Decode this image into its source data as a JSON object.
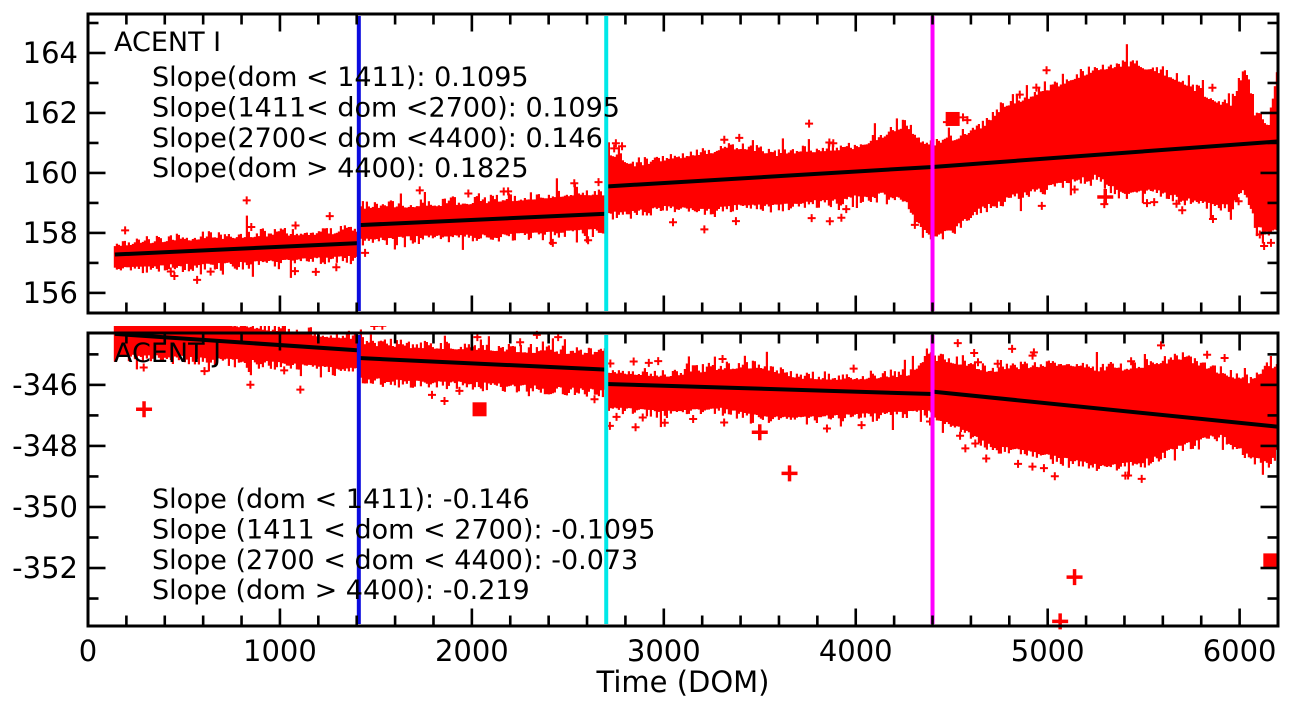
{
  "figure": {
    "background": "#ffffff"
  },
  "chart_data": {
    "type": "scatter",
    "title": "",
    "xlabel": "Time (DOM)",
    "ylabel": "",
    "x_range": [
      0,
      6200
    ],
    "x_major_ticks": [
      0,
      1000,
      2000,
      3000,
      4000,
      5000,
      6000
    ],
    "x_tick_labels": [
      "0",
      "1000",
      "2000",
      "3000",
      "4000",
      "5000",
      "6000"
    ],
    "x_minor_step": 200,
    "grid": false,
    "colors": {
      "marker": "#ff0000",
      "fit": "#000000",
      "axis": "#000000",
      "blue": "#0b0bdf",
      "cyan": "#00e8e8",
      "magenta": "#ff00ff"
    },
    "vlines": [
      {
        "x": 1411,
        "color": "blue"
      },
      {
        "x": 2700,
        "color": "cyan"
      },
      {
        "x": 4400,
        "color": "magenta"
      }
    ],
    "panels": [
      {
        "id": "acent-i",
        "label": "ACENT I",
        "y_range": [
          155.33,
          165.3
        ],
        "y_major_ticks": [
          164,
          162,
          160,
          158,
          156
        ],
        "y_minor_step": 1,
        "annotations": [
          "Slope(dom < 1411): 0.1095",
          "Slope(1411< dom <2700): 0.1095",
          "Slope(2700< dom <4400): 0.146",
          "Slope(dom > 4400): 0.1825"
        ],
        "fits": [
          [
            140,
            157.28,
            1411,
            157.66
          ],
          [
            1411,
            158.26,
            2700,
            158.64
          ],
          [
            2700,
            159.55,
            4400,
            160.2
          ],
          [
            4400,
            160.2,
            6200,
            161.05
          ]
        ],
        "band": [
          [
            140,
            156.85,
            157.55
          ],
          [
            400,
            156.95,
            157.7
          ],
          [
            700,
            157.0,
            157.8
          ],
          [
            1000,
            157.1,
            157.9
          ],
          [
            1250,
            157.2,
            157.95
          ],
          [
            1405,
            157.25,
            158.0
          ],
          [
            1412,
            157.8,
            158.8
          ],
          [
            1700,
            157.9,
            158.85
          ],
          [
            2000,
            157.95,
            158.95
          ],
          [
            2300,
            158.0,
            159.1
          ],
          [
            2550,
            158.1,
            159.25
          ],
          [
            2696,
            158.15,
            159.25
          ],
          [
            2701,
            158.7,
            160.65
          ],
          [
            2850,
            158.75,
            160.2
          ],
          [
            3000,
            158.9,
            160.4
          ],
          [
            3200,
            158.8,
            160.6
          ],
          [
            3400,
            158.95,
            160.8
          ],
          [
            3600,
            158.95,
            160.55
          ],
          [
            3800,
            159.1,
            160.7
          ],
          [
            4000,
            159.25,
            160.8
          ],
          [
            4150,
            159.35,
            161.2
          ],
          [
            4260,
            159.1,
            161.55
          ],
          [
            4340,
            158.2,
            161.0
          ],
          [
            4400,
            157.9,
            160.9
          ],
          [
            4500,
            158.15,
            161.05
          ],
          [
            4650,
            158.85,
            161.45
          ],
          [
            4800,
            159.25,
            162.25
          ],
          [
            4950,
            159.5,
            162.55
          ],
          [
            5100,
            159.75,
            163.0
          ],
          [
            5250,
            159.95,
            163.4
          ],
          [
            5400,
            159.3,
            163.55
          ],
          [
            5550,
            159.5,
            163.4
          ],
          [
            5700,
            159.2,
            163.0
          ],
          [
            5850,
            159.0,
            162.4
          ],
          [
            5950,
            158.95,
            162.15
          ],
          [
            6030,
            159.55,
            163.45
          ],
          [
            6080,
            158.4,
            161.9
          ],
          [
            6150,
            158.0,
            161.5
          ],
          [
            6200,
            158.3,
            163.5
          ]
        ],
        "outliers": [
          {
            "x": 4505,
            "y": 161.8,
            "marker": "square"
          },
          {
            "x": 5300,
            "y": 159.2,
            "marker": "plus"
          }
        ]
      },
      {
        "id": "acent-j",
        "label": "ACENT J",
        "y_range": [
          -353.9,
          -344.3
        ],
        "y_major_ticks": [
          -346,
          -348,
          -350,
          -352
        ],
        "y_minor_step": 1,
        "annotations": [
          "Slope (dom < 1411): -0.146",
          "Slope (1411 < dom < 2700): -0.1095",
          "Slope (2700 < dom < 4400): -0.073",
          "Slope (dom > 4400): -0.219"
        ],
        "fits": [
          [
            140,
            -344.33,
            1411,
            -344.87
          ],
          [
            1411,
            -345.12,
            2700,
            -345.5
          ],
          [
            2700,
            -345.97,
            4400,
            -346.3
          ],
          [
            4400,
            -346.22,
            6200,
            -347.37
          ]
        ],
        "band": [
          [
            140,
            -345.0,
            -343.85
          ],
          [
            500,
            -345.05,
            -343.9
          ],
          [
            900,
            -345.2,
            -344.2
          ],
          [
            1250,
            -345.4,
            -344.45
          ],
          [
            1405,
            -345.45,
            -344.5
          ],
          [
            1412,
            -345.75,
            -344.7
          ],
          [
            1700,
            -345.85,
            -344.8
          ],
          [
            2000,
            -345.9,
            -344.85
          ],
          [
            2300,
            -346.0,
            -344.95
          ],
          [
            2550,
            -346.1,
            -345.0
          ],
          [
            2696,
            -346.15,
            -345.05
          ],
          [
            2701,
            -346.7,
            -345.6
          ],
          [
            3000,
            -346.85,
            -345.75
          ],
          [
            3300,
            -346.75,
            -345.5
          ],
          [
            3500,
            -347.0,
            -345.45
          ],
          [
            3700,
            -347.05,
            -345.8
          ],
          [
            4000,
            -346.95,
            -345.85
          ],
          [
            4300,
            -346.85,
            -345.7
          ],
          [
            4385,
            -346.8,
            -344.95
          ],
          [
            4405,
            -347.05,
            -345.2
          ],
          [
            4550,
            -347.4,
            -345.35
          ],
          [
            4700,
            -347.95,
            -345.6
          ],
          [
            4900,
            -348.15,
            -345.45
          ],
          [
            5100,
            -348.4,
            -345.35
          ],
          [
            5300,
            -348.65,
            -345.6
          ],
          [
            5500,
            -348.45,
            -345.45
          ],
          [
            5700,
            -347.95,
            -345.2
          ],
          [
            5900,
            -347.55,
            -345.65
          ],
          [
            6050,
            -348.25,
            -345.95
          ],
          [
            6150,
            -348.55,
            -345.45
          ],
          [
            6200,
            -347.95,
            -345.55
          ]
        ],
        "outliers": [
          {
            "x": 292,
            "y": -346.8,
            "marker": "plus"
          },
          {
            "x": 2040,
            "y": -346.8,
            "marker": "square"
          },
          {
            "x": 3500,
            "y": -347.55,
            "marker": "plus"
          },
          {
            "x": 3655,
            "y": -348.9,
            "marker": "plus"
          },
          {
            "x": 5140,
            "y": -352.3,
            "marker": "plus"
          },
          {
            "x": 5065,
            "y": -353.75,
            "marker": "plus"
          },
          {
            "x": 6160,
            "y": -351.75,
            "marker": "square"
          }
        ]
      }
    ]
  }
}
